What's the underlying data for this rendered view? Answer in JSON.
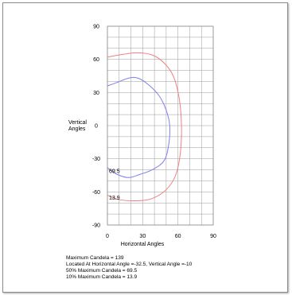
{
  "chart_data": {
    "type": "line",
    "title": "",
    "xlabel": "Horizontal Angles",
    "ylabel": "Vertical Angles",
    "xlim": [
      0,
      90
    ],
    "ylim": [
      -90,
      90
    ],
    "x_ticks": [
      "0",
      "30",
      "60",
      "90"
    ],
    "y_ticks": [
      "90",
      "60",
      "30",
      "0",
      "-30",
      "-60",
      "-90"
    ],
    "grid": true,
    "series": [
      {
        "color": "#f08080",
        "points": [
          [
            0,
            62
          ],
          [
            10,
            64
          ],
          [
            25,
            66
          ],
          [
            38,
            64
          ],
          [
            48,
            57
          ],
          [
            56,
            45
          ],
          [
            61,
            25
          ],
          [
            63,
            0
          ],
          [
            62,
            -25
          ],
          [
            58,
            -45
          ],
          [
            50,
            -58
          ],
          [
            38,
            -66
          ],
          [
            25,
            -68
          ],
          [
            10,
            -67
          ],
          [
            0,
            -63
          ]
        ]
      },
      {
        "color": "#7f7fef",
        "points": [
          [
            0,
            36
          ],
          [
            8,
            39
          ],
          [
            18,
            43
          ],
          [
            26,
            43
          ],
          [
            35,
            37
          ],
          [
            44,
            27
          ],
          [
            50,
            14
          ],
          [
            53,
            0
          ],
          [
            52,
            -18
          ],
          [
            48,
            -32
          ],
          [
            38,
            -40
          ],
          [
            28,
            -44
          ],
          [
            18,
            -47
          ],
          [
            8,
            -44
          ],
          [
            0,
            -38
          ]
        ]
      }
    ],
    "annotations": [
      {
        "text": "69.5",
        "x": 0,
        "y": -41
      },
      {
        "text": "13.9",
        "x": 0,
        "y": -65
      }
    ]
  },
  "summary": {
    "max_candela": "Maximum Candela = 139",
    "located_at": "Located At Horizontal Angle =-32.5, Vertical Angle =-10",
    "half_max": "50% Maximum Candela = 69.5",
    "tenth_max": "10% Maximum Candela = 13.9"
  }
}
